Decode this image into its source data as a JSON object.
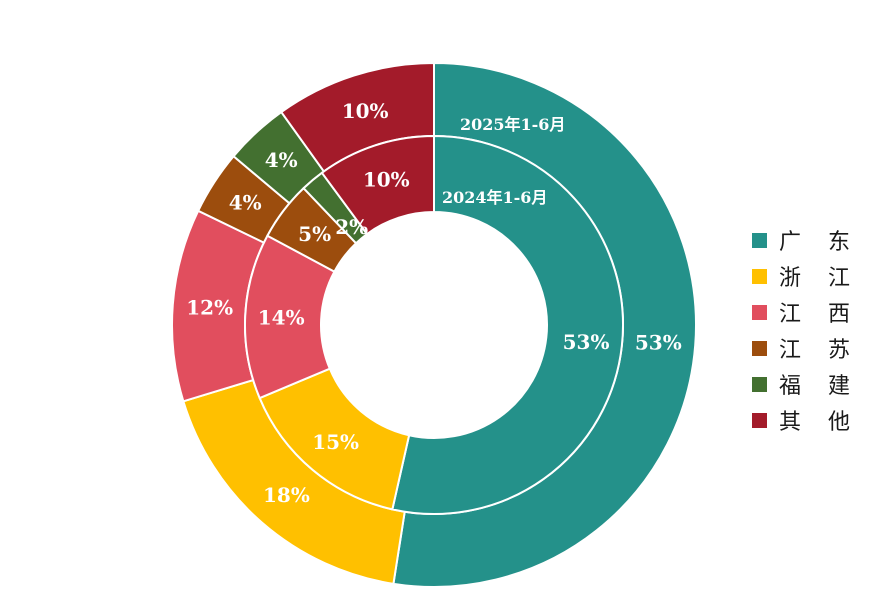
{
  "chart_data": {
    "type": "pie",
    "categories": [
      "广 东",
      "浙 江",
      "江 西",
      "江 苏",
      "福 建",
      "其 他"
    ],
    "colors": [
      "#24918a",
      "#ffc000",
      "#e14e5e",
      "#9c4d0d",
      "#437030",
      "#a31b2a"
    ],
    "series": [
      {
        "name": "2024年1-6月",
        "ring": "inner",
        "values": [
          53,
          15,
          14,
          5,
          2,
          10
        ],
        "labels": [
          "53%",
          "15%",
          "14%",
          "5%",
          "2%",
          "10%"
        ]
      },
      {
        "name": "2025年1-6月",
        "ring": "outer",
        "values": [
          53,
          18,
          12,
          4,
          4,
          10
        ],
        "labels": [
          "53%",
          "18%",
          "12%",
          "4%",
          "4%",
          "10%"
        ]
      }
    ],
    "legend": "right"
  }
}
